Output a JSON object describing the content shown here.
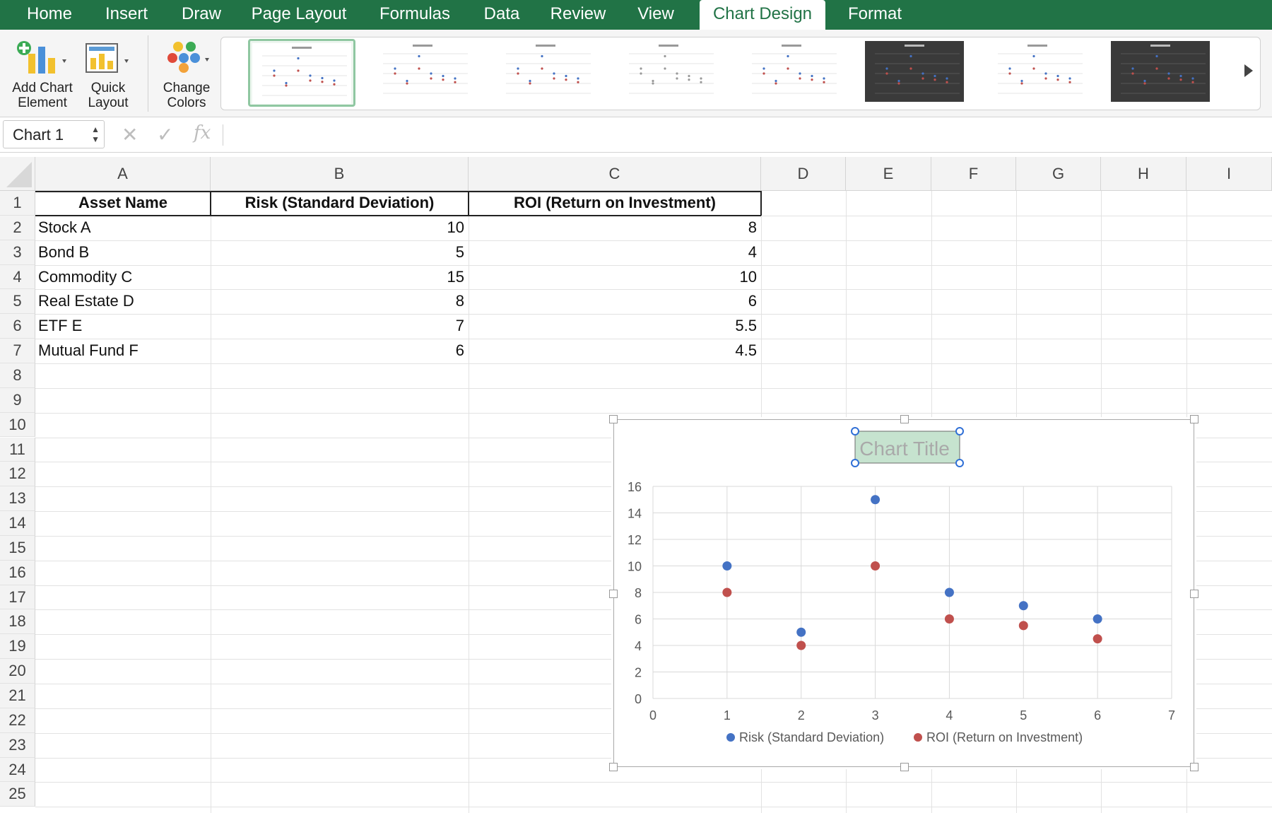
{
  "ribbon": {
    "tabs": [
      "Home",
      "Insert",
      "Draw",
      "Page Layout",
      "Formulas",
      "Data",
      "Review",
      "View",
      "Chart Design",
      "Format"
    ],
    "active_tab": "Chart Design",
    "buttons": {
      "add_chart_element_line1": "Add Chart",
      "add_chart_element_line2": "Element",
      "quick_layout_line1": "Quick",
      "quick_layout_line2": "Layout",
      "change_colors_line1": "Change",
      "change_colors_line2": "Colors"
    },
    "style_gallery_count": 8
  },
  "formula_bar": {
    "name_box": "Chart 1",
    "cancel_icon": "✕",
    "enter_icon": "✓",
    "fx_icon": "fx",
    "formula": ""
  },
  "sheet": {
    "columns": [
      "A",
      "B",
      "C",
      "D",
      "E",
      "F",
      "G",
      "H",
      "I"
    ],
    "rows": [
      "1",
      "2",
      "3",
      "4",
      "5",
      "6",
      "7",
      "8",
      "9",
      "10",
      "11",
      "12",
      "13",
      "14",
      "15",
      "16",
      "17",
      "18",
      "19",
      "20",
      "21",
      "22",
      "23",
      "24",
      "25"
    ],
    "headers": [
      "Asset Name",
      "Risk (Standard Deviation)",
      "ROI (Return on Investment)"
    ],
    "data": [
      [
        "Stock A",
        "10",
        "8"
      ],
      [
        "Bond B",
        "5",
        "4"
      ],
      [
        "Commodity C",
        "15",
        "10"
      ],
      [
        "Real Estate D",
        "8",
        "6"
      ],
      [
        "ETF E",
        "7",
        "5.5"
      ],
      [
        "Mutual Fund F",
        "6",
        "4.5"
      ]
    ]
  },
  "chart_data": {
    "type": "scatter",
    "title": "Chart Title",
    "x": [
      1,
      2,
      3,
      4,
      5,
      6
    ],
    "series": [
      {
        "name": "Risk (Standard Deviation)",
        "values": [
          10,
          5,
          15,
          8,
          7,
          6
        ],
        "color": "#4472C4"
      },
      {
        "name": "ROI (Return on Investment)",
        "values": [
          8,
          4,
          10,
          6,
          5.5,
          4.5
        ],
        "color": "#C0504D"
      }
    ],
    "xlim": [
      0,
      7
    ],
    "ylim": [
      0,
      16
    ],
    "xticks": [
      "0",
      "1",
      "2",
      "3",
      "4",
      "5",
      "6",
      "7"
    ],
    "yticks": [
      "0",
      "2",
      "4",
      "6",
      "8",
      "10",
      "12",
      "14",
      "16"
    ],
    "grid": true,
    "legend": "bottom",
    "title_selected": true
  },
  "colors": {
    "ribbon_green": "#217346",
    "title_highlight": "#c6e3cf",
    "series_blue": "#4472C4",
    "series_red": "#C0504D"
  }
}
